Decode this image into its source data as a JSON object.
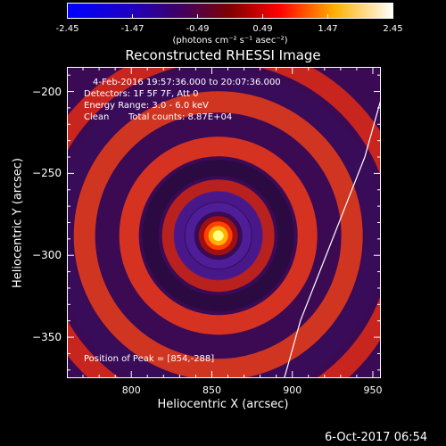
{
  "chart_data": {
    "type": "heatmap",
    "title": "Reconstructed RHESSI Image",
    "xlabel": "Heliocentric X (arcsec)",
    "ylabel": "Heliocentric Y (arcsec)",
    "xlim": [
      760,
      955
    ],
    "ylim": [
      -375,
      -185
    ],
    "xticks": [
      800,
      850,
      900,
      950
    ],
    "yticks": [
      -200,
      -250,
      -300,
      -350
    ],
    "peak": {
      "x": 854,
      "y": -288
    },
    "colorbar": {
      "range": [
        -2.45,
        2.45
      ],
      "ticks": [
        "-2.45",
        "-1.47",
        "-0.49",
        "0.49",
        "1.47",
        "2.45"
      ],
      "unit_label": "(photons cm⁻² s⁻¹ asec⁻²)",
      "colors": [
        "#0000ff",
        "#400060",
        "#800000",
        "#ff0000",
        "#ffb000",
        "#ffffff"
      ]
    },
    "limb_curve": [
      [
        955,
        -205
      ],
      [
        945,
        -240
      ],
      [
        925,
        -290
      ],
      [
        905,
        -340
      ],
      [
        895,
        -375
      ]
    ],
    "annotations": {
      "time_range": "4-Feb-2016 19:57:36.000 to 20:07:36.000",
      "detectors": "Detectors: 1F 5F 7F, Att 0",
      "energy": "Energy Range: 3.0 - 6.0 keV",
      "clean": "Clean",
      "total_counts": "Total counts: 8.87E+04",
      "peak_position": "Position of Peak = [854,-288]"
    }
  },
  "footer": {
    "date": "6-Oct-2017 06:54"
  }
}
